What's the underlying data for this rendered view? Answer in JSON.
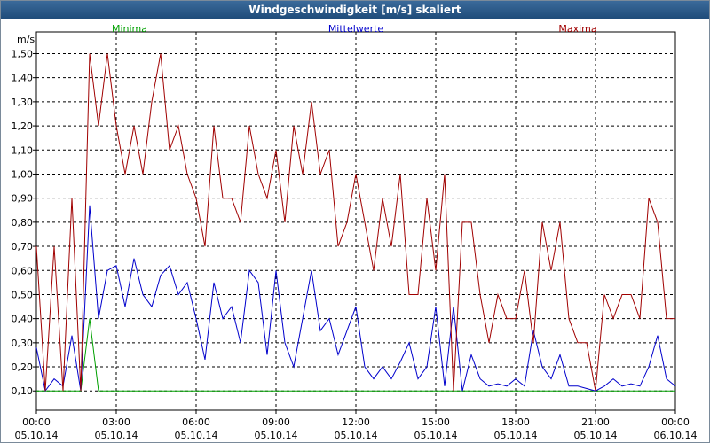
{
  "chart_data": {
    "type": "line",
    "title": "Windgeschwindigkeit [m/s] skaliert",
    "y_unit": "m/s",
    "grid": true,
    "xlim": [
      0,
      1440
    ],
    "ylim": [
      0.02,
      1.59
    ],
    "xticks": [
      {
        "value": 0,
        "label": "00:00",
        "date": "05.10.14"
      },
      {
        "value": 180,
        "label": "03:00",
        "date": "05.10.14"
      },
      {
        "value": 360,
        "label": "06:00",
        "date": "05.10.14"
      },
      {
        "value": 540,
        "label": "09:00",
        "date": "05.10.14"
      },
      {
        "value": 720,
        "label": "12:00",
        "date": "05.10.14"
      },
      {
        "value": 900,
        "label": "15:00",
        "date": "05.10.14"
      },
      {
        "value": 1080,
        "label": "18:00",
        "date": "05.10.14"
      },
      {
        "value": 1260,
        "label": "21:00",
        "date": "05.10.14"
      },
      {
        "value": 1440,
        "label": "00:00",
        "date": "06.10.14"
      }
    ],
    "yticks": [
      {
        "value": 0.1,
        "label": "0,10"
      },
      {
        "value": 0.2,
        "label": "0,20"
      },
      {
        "value": 0.3,
        "label": "0,30"
      },
      {
        "value": 0.4,
        "label": "0,40"
      },
      {
        "value": 0.5,
        "label": "0,50"
      },
      {
        "value": 0.6,
        "label": "0,60"
      },
      {
        "value": 0.7,
        "label": "0,70"
      },
      {
        "value": 0.8,
        "label": "0,80"
      },
      {
        "value": 0.9,
        "label": "0,90"
      },
      {
        "value": 1.0,
        "label": "1,00"
      },
      {
        "value": 1.1,
        "label": "1,10"
      },
      {
        "value": 1.2,
        "label": "1,20"
      },
      {
        "value": 1.3,
        "label": "1,30"
      },
      {
        "value": 1.4,
        "label": "1,40"
      },
      {
        "value": 1.5,
        "label": "1,50"
      }
    ],
    "x": [
      0,
      20,
      40,
      60,
      80,
      100,
      120,
      140,
      160,
      180,
      200,
      220,
      240,
      260,
      280,
      300,
      320,
      340,
      360,
      380,
      400,
      420,
      440,
      460,
      480,
      500,
      520,
      540,
      560,
      580,
      600,
      620,
      640,
      660,
      680,
      700,
      720,
      740,
      760,
      780,
      800,
      820,
      840,
      860,
      880,
      900,
      920,
      940,
      960,
      980,
      1000,
      1020,
      1040,
      1060,
      1080,
      1100,
      1120,
      1140,
      1160,
      1180,
      1200,
      1220,
      1240,
      1260,
      1280,
      1300,
      1320,
      1340,
      1360,
      1380,
      1400,
      1420,
      1440
    ],
    "series": [
      {
        "name": "Minima",
        "color": "#00a000",
        "values": [
          0.1,
          0.1,
          0.1,
          0.1,
          0.1,
          0.1,
          0.4,
          0.1,
          0.1,
          0.1,
          0.1,
          0.1,
          0.1,
          0.1,
          0.1,
          0.1,
          0.1,
          0.1,
          0.1,
          0.1,
          0.1,
          0.1,
          0.1,
          0.1,
          0.1,
          0.1,
          0.1,
          0.1,
          0.1,
          0.1,
          0.1,
          0.1,
          0.1,
          0.1,
          0.1,
          0.1,
          0.1,
          0.1,
          0.1,
          0.1,
          0.1,
          0.1,
          0.1,
          0.1,
          0.1,
          0.1,
          0.1,
          0.1,
          0.1,
          0.1,
          0.1,
          0.1,
          0.1,
          0.1,
          0.1,
          0.1,
          0.1,
          0.1,
          0.1,
          0.1,
          0.1,
          0.1,
          0.1,
          0.1,
          0.1,
          0.1,
          0.1,
          0.1,
          0.1,
          0.1,
          0.1,
          0.1,
          0.1
        ]
      },
      {
        "name": "Mittelwerte",
        "color": "#0000cc",
        "values": [
          0.28,
          0.1,
          0.15,
          0.12,
          0.33,
          0.1,
          0.87,
          0.4,
          0.6,
          0.62,
          0.45,
          0.65,
          0.5,
          0.45,
          0.58,
          0.62,
          0.5,
          0.55,
          0.4,
          0.23,
          0.55,
          0.4,
          0.45,
          0.3,
          0.6,
          0.55,
          0.25,
          0.6,
          0.3,
          0.2,
          0.4,
          0.6,
          0.35,
          0.4,
          0.25,
          0.35,
          0.45,
          0.2,
          0.15,
          0.2,
          0.15,
          0.22,
          0.3,
          0.15,
          0.2,
          0.45,
          0.12,
          0.45,
          0.1,
          0.25,
          0.15,
          0.12,
          0.13,
          0.12,
          0.15,
          0.12,
          0.35,
          0.2,
          0.15,
          0.25,
          0.12,
          0.12,
          0.11,
          0.1,
          0.12,
          0.15,
          0.12,
          0.13,
          0.12,
          0.2,
          0.33,
          0.15,
          0.12
        ]
      },
      {
        "name": "Maxima",
        "color": "#a00000",
        "values": [
          0.7,
          0.1,
          0.7,
          0.1,
          0.9,
          0.1,
          1.5,
          1.2,
          1.5,
          1.2,
          1.0,
          1.2,
          1.0,
          1.3,
          1.5,
          1.1,
          1.2,
          1.0,
          0.9,
          0.7,
          1.2,
          0.9,
          0.9,
          0.8,
          1.2,
          1.0,
          0.9,
          1.1,
          0.8,
          1.2,
          1.0,
          1.3,
          1.0,
          1.1,
          0.7,
          0.8,
          1.0,
          0.8,
          0.6,
          0.9,
          0.7,
          1.0,
          0.5,
          0.5,
          0.9,
          0.6,
          1.0,
          0.1,
          0.8,
          0.8,
          0.5,
          0.3,
          0.5,
          0.4,
          0.4,
          0.6,
          0.3,
          0.8,
          0.6,
          0.8,
          0.4,
          0.3,
          0.3,
          0.1,
          0.5,
          0.4,
          0.5,
          0.5,
          0.4,
          0.9,
          0.8,
          0.4,
          0.4
        ]
      }
    ]
  }
}
